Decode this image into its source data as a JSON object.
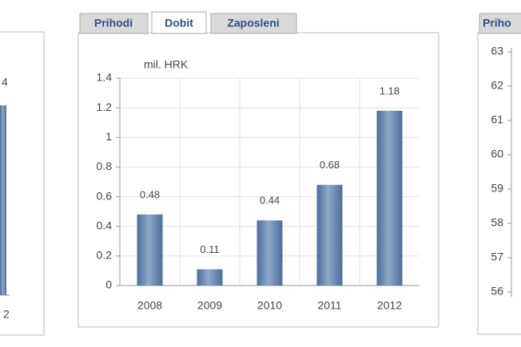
{
  "tabs": [
    "Prihodi",
    "Dobit",
    "Zaposleni"
  ],
  "chart_data": {
    "type": "bar",
    "y_label": "mil. HRK",
    "categories": [
      "2008",
      "2009",
      "2010",
      "2011",
      "2012"
    ],
    "values": [
      0.48,
      0.11,
      0.44,
      0.68,
      1.18
    ],
    "color": "#4a6e9c",
    "ylim": [
      0,
      1.4
    ],
    "yticks": [
      0,
      0.2,
      0.4,
      0.6,
      0.8,
      1,
      1.2,
      1.4
    ],
    "grid": true
  },
  "left_panel": {
    "texts": [
      "4",
      "2"
    ]
  },
  "right_panel": {
    "tab": "Priho",
    "yticks": [
      63,
      62,
      61,
      60,
      59,
      58,
      57,
      56
    ]
  }
}
